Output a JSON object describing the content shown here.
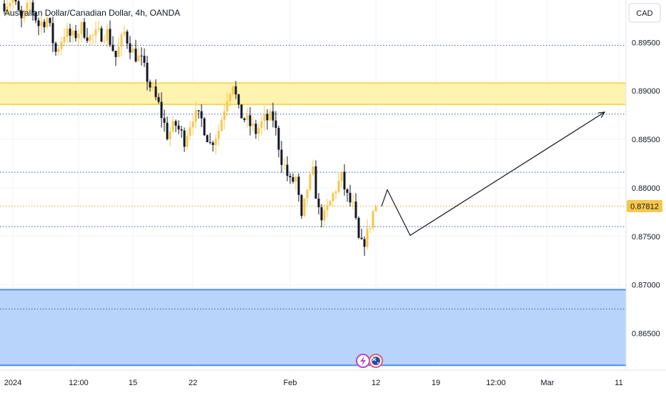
{
  "chart_data": {
    "type": "candlestick",
    "title": "Australian Dollar/Canadian Dollar, 4h, OANDA",
    "currency_label": "CAD",
    "current_price": "0.87812",
    "ylim": [
      0.8615,
      0.899
    ],
    "y_ticks": [
      "0.89500",
      "0.89000",
      "0.88500",
      "0.88000",
      "0.87500",
      "0.87000",
      "0.86500"
    ],
    "x_ticks": [
      {
        "label": "2024",
        "bar": 3
      },
      {
        "label": "12:00",
        "bar": 26
      },
      {
        "label": "15",
        "bar": 45
      },
      {
        "label": "22",
        "bar": 66
      },
      {
        "label": "Feb",
        "bar": 100
      },
      {
        "label": "12",
        "bar": 130
      },
      {
        "label": "19",
        "bar": 151
      },
      {
        "label": "12:00",
        "bar": 172
      },
      {
        "label": "Mar",
        "bar": 190
      },
      {
        "label": "11",
        "bar": 215
      }
    ],
    "dotted_levels": [
      0.8947,
      0.8876,
      0.8816,
      0.876,
      0.8675
    ],
    "current_level": 0.87812,
    "zones": [
      {
        "name": "resistance",
        "from": 0.8886,
        "to": 0.8908,
        "color": "#fff3b0",
        "border": "#f5d95c"
      },
      {
        "name": "support",
        "from": 0.8617,
        "to": 0.8695,
        "color": "#b8d4fa",
        "border": "#4d8ef0"
      }
    ],
    "projection": [
      {
        "bar": 132,
        "price": 0.8781
      },
      {
        "bar": 134,
        "price": 0.8798
      },
      {
        "bar": 142,
        "price": 0.8751
      },
      {
        "bar": 210,
        "price": 0.8878
      }
    ],
    "price_path": [
      [
        0,
        0.899
      ],
      [
        3,
        0.8995
      ],
      [
        6,
        0.8972
      ],
      [
        9,
        0.899
      ],
      [
        12,
        0.8968
      ],
      [
        15,
        0.8975
      ],
      [
        18,
        0.894
      ],
      [
        21,
        0.896
      ],
      [
        24,
        0.8955
      ],
      [
        27,
        0.8965
      ],
      [
        30,
        0.8955
      ],
      [
        33,
        0.8958
      ],
      [
        36,
        0.896
      ],
      [
        39,
        0.8935
      ],
      [
        42,
        0.896
      ],
      [
        45,
        0.894
      ],
      [
        48,
        0.893
      ],
      [
        51,
        0.8905
      ],
      [
        54,
        0.8885
      ],
      [
        57,
        0.8855
      ],
      [
        60,
        0.8865
      ],
      [
        63,
        0.885
      ],
      [
        66,
        0.8875
      ],
      [
        69,
        0.887
      ],
      [
        72,
        0.8845
      ],
      [
        75,
        0.886
      ],
      [
        78,
        0.8895
      ],
      [
        80,
        0.891
      ],
      [
        82,
        0.8878
      ],
      [
        85,
        0.8868
      ],
      [
        88,
        0.8858
      ],
      [
        91,
        0.887
      ],
      [
        94,
        0.8872
      ],
      [
        97,
        0.883
      ],
      [
        100,
        0.8805
      ],
      [
        102,
        0.881
      ],
      [
        104,
        0.8765
      ],
      [
        106,
        0.88
      ],
      [
        108,
        0.8815
      ],
      [
        110,
        0.8775
      ],
      [
        112,
        0.877
      ],
      [
        114,
        0.8785
      ],
      [
        116,
        0.88
      ],
      [
        118,
        0.881
      ],
      [
        120,
        0.879
      ],
      [
        122,
        0.878
      ],
      [
        124,
        0.8745
      ],
      [
        125,
        0.874
      ],
      [
        127,
        0.8752
      ],
      [
        129,
        0.8775
      ],
      [
        130,
        0.8781
      ]
    ]
  }
}
